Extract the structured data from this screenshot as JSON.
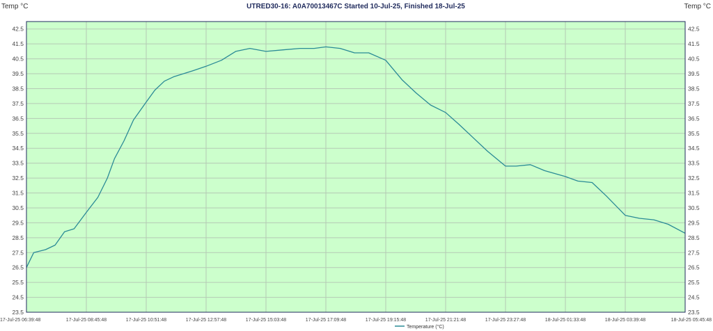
{
  "chart_data": {
    "type": "line",
    "title": "UTRED30-16: A0A70013467C Started 10-Jul-25, Finished 18-Jul-25",
    "ylabel_left": "Temp °C",
    "ylabel_right": "Temp °C",
    "ylim": [
      23.5,
      43.0
    ],
    "yticks": [
      "23.5",
      "24.5",
      "25.5",
      "26.5",
      "27.5",
      "28.5",
      "29.5",
      "30.5",
      "31.5",
      "32.5",
      "33.5",
      "34.5",
      "35.5",
      "36.5",
      "37.5",
      "38.5",
      "39.5",
      "40.5",
      "41.5",
      "42.5"
    ],
    "x_time_range": [
      "17-Jul-25 06:39:48",
      "18-Jul-25 05:45:48"
    ],
    "xticks": [
      "17-Jul-25 06:39:48",
      "17-Jul-25 08:45:48",
      "17-Jul-25 10:51:48",
      "17-Jul-25 12:57:48",
      "17-Jul-25 15:03:48",
      "17-Jul-25 17:09:48",
      "17-Jul-25 19:15:48",
      "17-Jul-25 21:21:48",
      "17-Jul-25 23:27:48",
      "18-Jul-25 01:33:48",
      "18-Jul-25 03:39:48",
      "18-Jul-25 05:45:48"
    ],
    "grid": true,
    "background_color": "#ccffcc",
    "line_color": "#2a8a96",
    "legend_position": "bottom-center",
    "series": [
      {
        "name": "Temperature (°C)",
        "points": [
          [
            "17-Jul-25 06:39:48",
            26.5
          ],
          [
            "17-Jul-25 06:55:00",
            27.5
          ],
          [
            "17-Jul-25 07:20:00",
            27.7
          ],
          [
            "17-Jul-25 07:40:00",
            28.0
          ],
          [
            "17-Jul-25 08:00:00",
            28.9
          ],
          [
            "17-Jul-25 08:20:00",
            29.1
          ],
          [
            "17-Jul-25 08:45:48",
            30.2
          ],
          [
            "17-Jul-25 09:10:00",
            31.2
          ],
          [
            "17-Jul-25 09:30:00",
            32.5
          ],
          [
            "17-Jul-25 09:45:00",
            33.8
          ],
          [
            "17-Jul-25 10:05:00",
            35.0
          ],
          [
            "17-Jul-25 10:25:00",
            36.4
          ],
          [
            "17-Jul-25 10:51:48",
            37.6
          ],
          [
            "17-Jul-25 11:10:00",
            38.4
          ],
          [
            "17-Jul-25 11:30:00",
            39.0
          ],
          [
            "17-Jul-25 11:50:00",
            39.3
          ],
          [
            "17-Jul-25 12:10:00",
            39.5
          ],
          [
            "17-Jul-25 12:30:00",
            39.7
          ],
          [
            "17-Jul-25 12:57:48",
            40.0
          ],
          [
            "17-Jul-25 13:30:00",
            40.4
          ],
          [
            "17-Jul-25 14:00:00",
            41.0
          ],
          [
            "17-Jul-25 14:30:00",
            41.2
          ],
          [
            "17-Jul-25 15:03:48",
            41.0
          ],
          [
            "17-Jul-25 15:40:00",
            41.1
          ],
          [
            "17-Jul-25 16:15:00",
            41.2
          ],
          [
            "17-Jul-25 16:45:00",
            41.2
          ],
          [
            "17-Jul-25 17:09:48",
            41.3
          ],
          [
            "17-Jul-25 17:40:00",
            41.2
          ],
          [
            "17-Jul-25 18:10:00",
            40.9
          ],
          [
            "17-Jul-25 18:40:00",
            40.9
          ],
          [
            "17-Jul-25 19:15:48",
            40.4
          ],
          [
            "17-Jul-25 19:50:00",
            39.1
          ],
          [
            "17-Jul-25 20:20:00",
            38.2
          ],
          [
            "17-Jul-25 20:50:00",
            37.4
          ],
          [
            "17-Jul-25 21:21:48",
            36.9
          ],
          [
            "17-Jul-25 21:50:00",
            36.1
          ],
          [
            "17-Jul-25 22:20:00",
            35.2
          ],
          [
            "17-Jul-25 22:50:00",
            34.3
          ],
          [
            "17-Jul-25 23:27:48",
            33.3
          ],
          [
            "17-Jul-25 23:50:00",
            33.3
          ],
          [
            "18-Jul-25 00:20:00",
            33.4
          ],
          [
            "18-Jul-25 00:50:00",
            33.0
          ],
          [
            "18-Jul-25 01:33:48",
            32.6
          ],
          [
            "18-Jul-25 02:00:00",
            32.3
          ],
          [
            "18-Jul-25 02:30:00",
            32.2
          ],
          [
            "18-Jul-25 03:00:00",
            31.3
          ],
          [
            "18-Jul-25 03:39:48",
            30.0
          ],
          [
            "18-Jul-25 04:10:00",
            29.8
          ],
          [
            "18-Jul-25 04:40:00",
            29.7
          ],
          [
            "18-Jul-25 05:10:00",
            29.4
          ],
          [
            "18-Jul-25 05:45:48",
            28.8
          ]
        ]
      }
    ]
  }
}
